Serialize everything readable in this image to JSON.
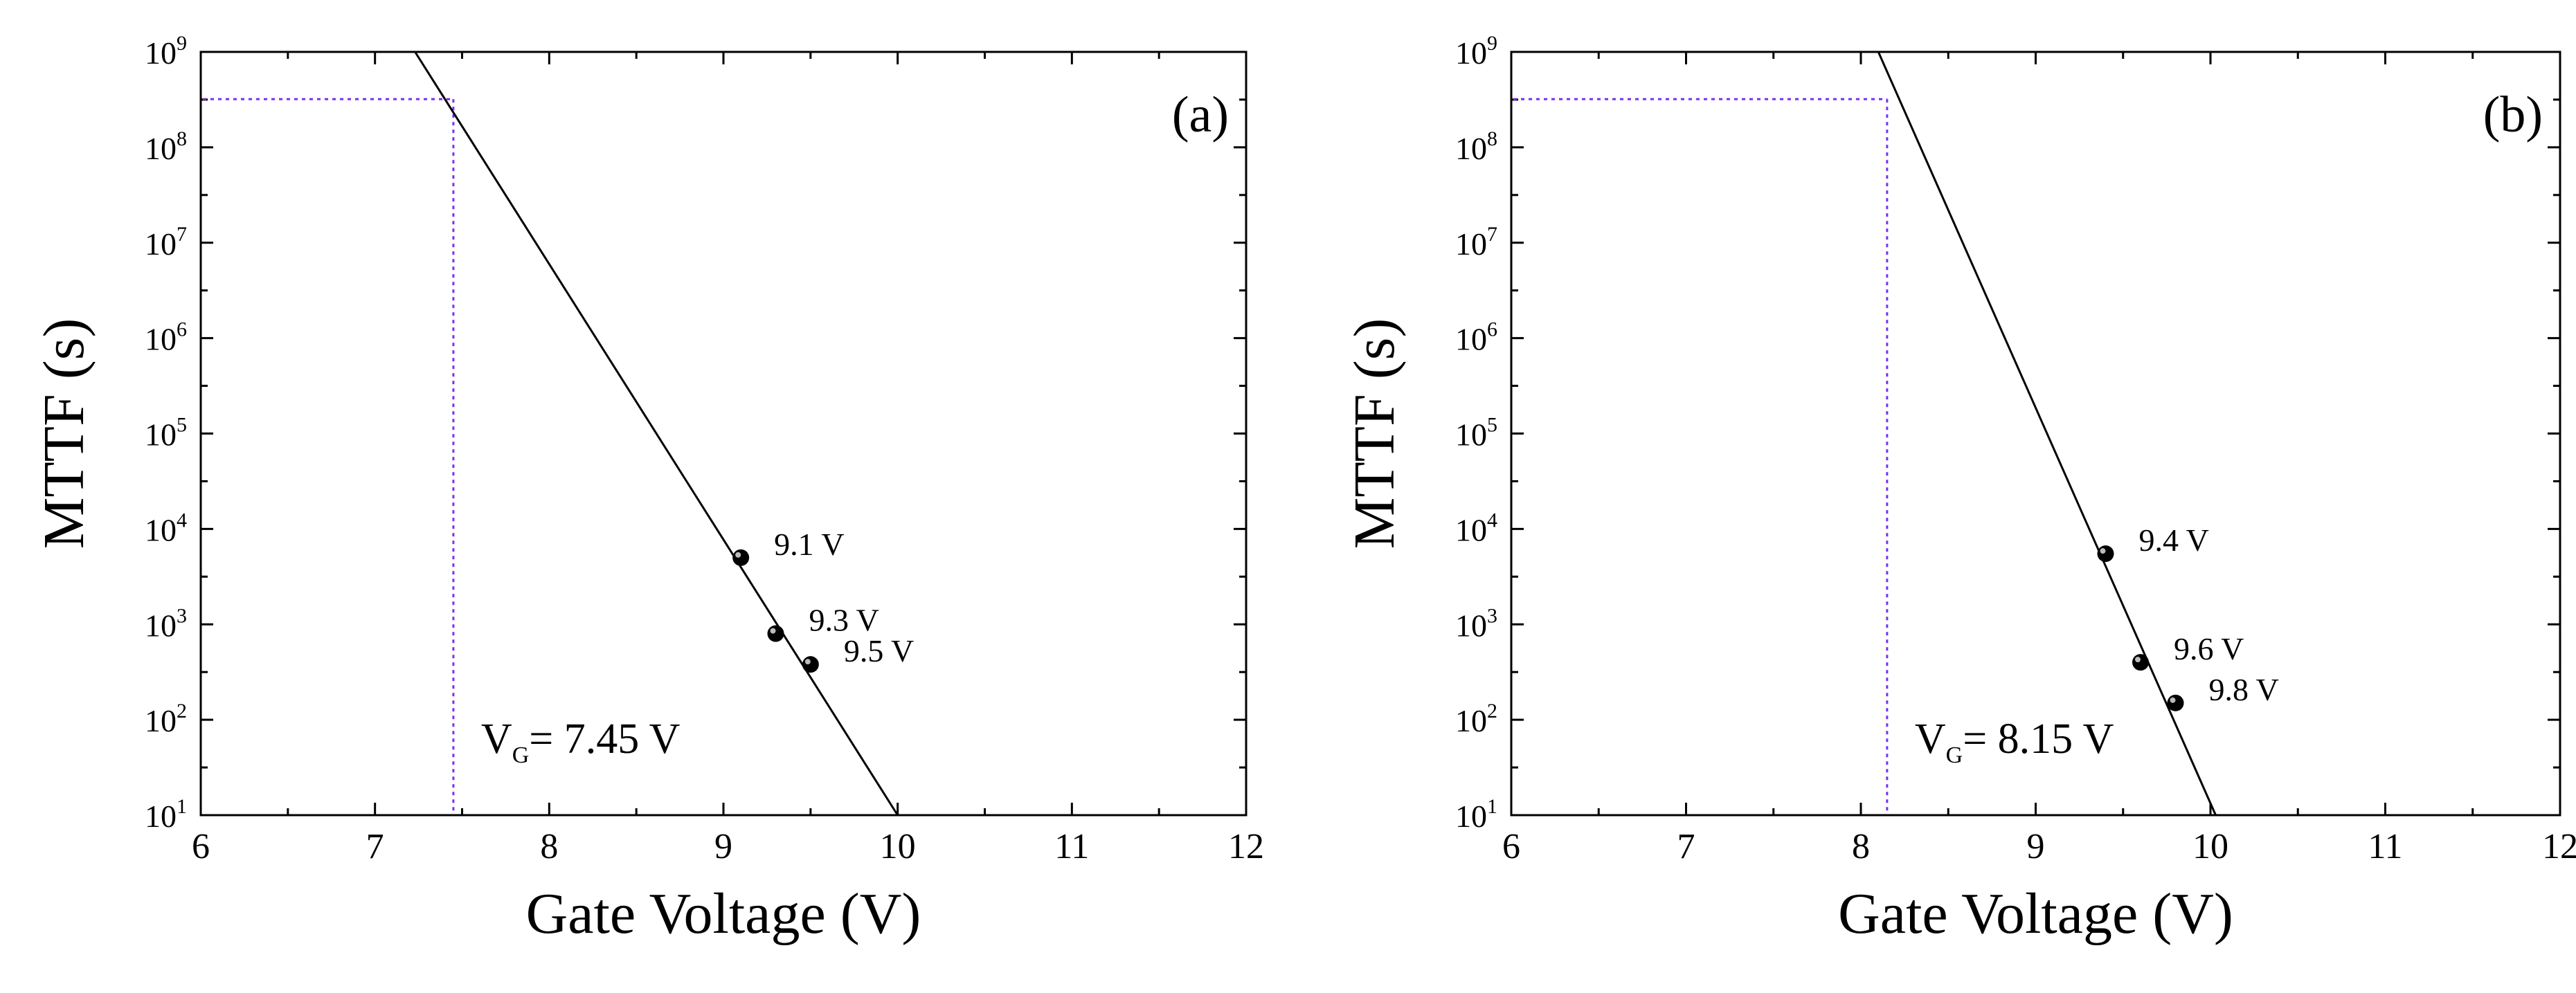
{
  "chart_data": [
    {
      "type": "scatter",
      "panel_label": "(a)",
      "xlabel": "Gate Voltage (V)",
      "ylabel": "MTTF (s)",
      "xlim": [
        6,
        12
      ],
      "ylim": [
        10,
        1000000000
      ],
      "yscale": "log",
      "x_ticks": [
        6,
        7,
        8,
        9,
        10,
        11,
        12
      ],
      "y_tick_exponents": [
        1,
        2,
        3,
        4,
        5,
        6,
        7,
        8,
        9
      ],
      "grid": false,
      "points": [
        {
          "x": 9.1,
          "y": 5000,
          "label": "9.1 V"
        },
        {
          "x": 9.3,
          "y": 800,
          "label": "9.3 V"
        },
        {
          "x": 9.5,
          "y": 380,
          "label": "9.5 V"
        }
      ],
      "fit_line": [
        [
          7.23,
          1000000000
        ],
        [
          10.0,
          10
        ]
      ],
      "extrapolation": {
        "x": 7.45,
        "y": 320000000,
        "annotation_main": "V",
        "annotation_sub": "G",
        "annotation_value": "= 7.45 V"
      },
      "colors": {
        "fit": "#000000",
        "extrapolation": "#7b2ff7",
        "points": "#000000"
      }
    },
    {
      "type": "scatter",
      "panel_label": "(b)",
      "xlabel": "Gate Voltage (V)",
      "ylabel": "MTTF (s)",
      "xlim": [
        6,
        12
      ],
      "ylim": [
        10,
        1000000000
      ],
      "yscale": "log",
      "x_ticks": [
        6,
        7,
        8,
        9,
        10,
        11,
        12
      ],
      "y_tick_exponents": [
        1,
        2,
        3,
        4,
        5,
        6,
        7,
        8,
        9
      ],
      "grid": false,
      "points": [
        {
          "x": 9.4,
          "y": 5500,
          "label": "9.4 V"
        },
        {
          "x": 9.6,
          "y": 400,
          "label": "9.6 V"
        },
        {
          "x": 9.8,
          "y": 150,
          "label": "9.8 V"
        }
      ],
      "fit_line": [
        [
          8.1,
          1000000000
        ],
        [
          10.03,
          10
        ]
      ],
      "extrapolation": {
        "x": 8.15,
        "y": 320000000,
        "annotation_main": "V",
        "annotation_sub": "G",
        "annotation_value": "= 8.15 V"
      },
      "colors": {
        "fit": "#000000",
        "extrapolation": "#7b2ff7",
        "points": "#000000"
      }
    }
  ]
}
